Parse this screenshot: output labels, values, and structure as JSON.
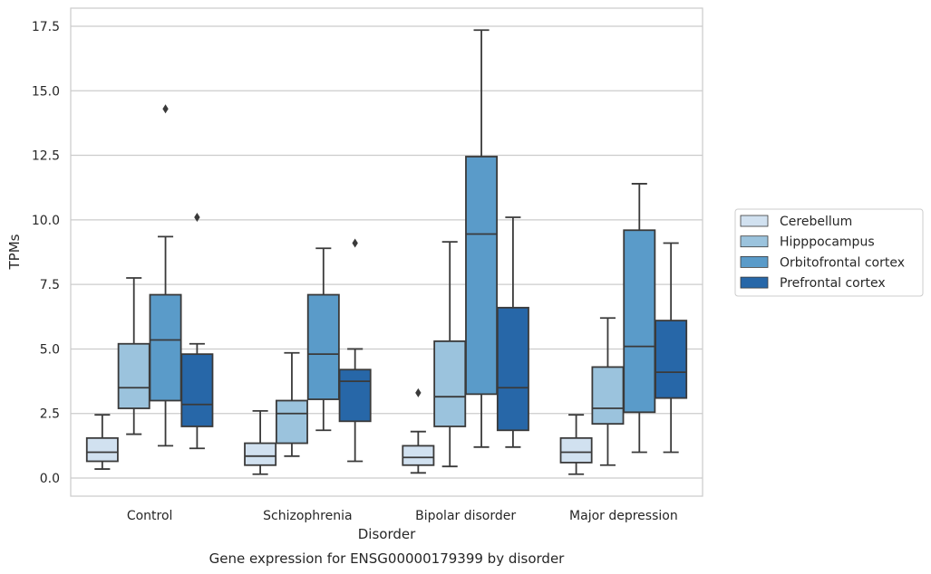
{
  "chart_data": {
    "type": "box",
    "xlabel": "Disorder",
    "ylabel": "TPMs",
    "caption": "Gene expression for ENSG00000179399 by disorder",
    "ylim": [
      -0.7,
      18.2
    ],
    "yticks": [
      "0.0",
      "2.5",
      "5.0",
      "7.5",
      "10.0",
      "12.5",
      "15.0",
      "17.5"
    ],
    "ytick_values": [
      0,
      2.5,
      5,
      7.5,
      10,
      12.5,
      15,
      17.5
    ],
    "grid": "horizontal",
    "legend_position": "right",
    "categories": [
      "Control",
      "Schizophrenia",
      "Bipolar disorder",
      "Major depression"
    ],
    "series": [
      {
        "name": "Cerebellum",
        "color": "#d1e1f0",
        "boxes": [
          {
            "whislo": 0.35,
            "q1": 0.65,
            "median": 1.0,
            "q3": 1.55,
            "whishi": 2.45,
            "fliers": []
          },
          {
            "whislo": 0.15,
            "q1": 0.5,
            "median": 0.85,
            "q3": 1.35,
            "whishi": 2.6,
            "fliers": []
          },
          {
            "whislo": 0.2,
            "q1": 0.5,
            "median": 0.8,
            "q3": 1.25,
            "whishi": 1.8,
            "fliers": [
              3.3
            ]
          },
          {
            "whislo": 0.15,
            "q1": 0.6,
            "median": 1.0,
            "q3": 1.55,
            "whishi": 2.45,
            "fliers": []
          }
        ]
      },
      {
        "name": "Hipppocampus",
        "color": "#9bc3dd",
        "boxes": [
          {
            "whislo": 1.7,
            "q1": 2.7,
            "median": 3.5,
            "q3": 5.2,
            "whishi": 7.75,
            "fliers": []
          },
          {
            "whislo": 0.85,
            "q1": 1.35,
            "median": 2.5,
            "q3": 3.0,
            "whishi": 4.85,
            "fliers": []
          },
          {
            "whislo": 0.45,
            "q1": 2.0,
            "median": 3.15,
            "q3": 5.3,
            "whishi": 9.15,
            "fliers": []
          },
          {
            "whislo": 0.5,
            "q1": 2.1,
            "median": 2.7,
            "q3": 4.3,
            "whishi": 6.2,
            "fliers": []
          }
        ]
      },
      {
        "name": "Orbitofrontal cortex",
        "color": "#5a9bc9",
        "boxes": [
          {
            "whislo": 1.25,
            "q1": 3.0,
            "median": 5.35,
            "q3": 7.1,
            "whishi": 9.35,
            "fliers": [
              14.3
            ]
          },
          {
            "whislo": 1.85,
            "q1": 3.05,
            "median": 4.8,
            "q3": 7.1,
            "whishi": 8.9,
            "fliers": []
          },
          {
            "whislo": 1.2,
            "q1": 3.25,
            "median": 9.45,
            "q3": 12.45,
            "whishi": 17.35,
            "fliers": []
          },
          {
            "whislo": 1.0,
            "q1": 2.55,
            "median": 5.1,
            "q3": 9.6,
            "whishi": 11.4,
            "fliers": []
          }
        ]
      },
      {
        "name": "Prefrontal cortex",
        "color": "#2767a8",
        "boxes": [
          {
            "whislo": 1.15,
            "q1": 2.0,
            "median": 2.85,
            "q3": 4.8,
            "whishi": 5.2,
            "fliers": [
              10.1
            ]
          },
          {
            "whislo": 0.65,
            "q1": 2.2,
            "median": 3.75,
            "q3": 4.2,
            "whishi": 5.0,
            "fliers": [
              9.1
            ]
          },
          {
            "whislo": 1.2,
            "q1": 1.85,
            "median": 3.5,
            "q3": 6.6,
            "whishi": 10.1,
            "fliers": []
          },
          {
            "whislo": 1.0,
            "q1": 3.1,
            "median": 4.1,
            "q3": 6.1,
            "whishi": 9.1,
            "fliers": []
          }
        ]
      }
    ]
  }
}
